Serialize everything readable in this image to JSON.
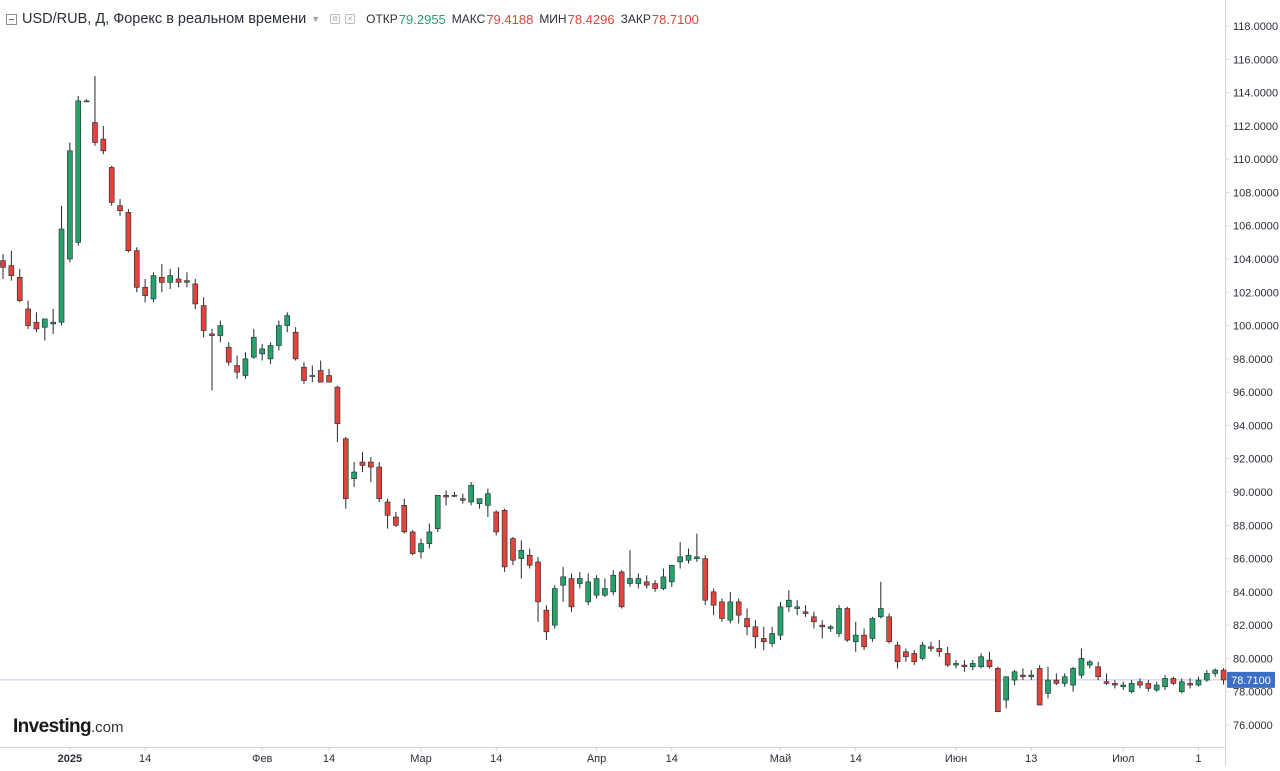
{
  "header": {
    "title": "USD/RUB, Д, Форекс в реальном времени",
    "ohlc": [
      {
        "label": "ОТКР",
        "value": "79.2955"
      },
      {
        "label": "МАКС",
        "value": "79.4188"
      },
      {
        "label": "МИН",
        "value": "78.4296"
      },
      {
        "label": "ЗАКР",
        "value": "78.7100"
      }
    ]
  },
  "logo": {
    "brand": "Investing",
    "suffix": ".com"
  },
  "last_price_label": "78.7100",
  "chart_data": {
    "type": "candlestick",
    "title": "USD/RUB, Д, Форекс в реальном времени",
    "ylim": [
      75,
      119
    ],
    "y_ticks": [
      "76.0000",
      "78.0000",
      "80.0000",
      "82.0000",
      "84.0000",
      "86.0000",
      "88.0000",
      "90.0000",
      "92.0000",
      "94.0000",
      "96.0000",
      "98.0000",
      "100.0000",
      "102.0000",
      "104.0000",
      "106.0000",
      "108.0000",
      "110.0000",
      "112.0000",
      "114.0000",
      "116.0000",
      "118.0000"
    ],
    "x_ticks": [
      {
        "label": "2025",
        "index": 8,
        "bold": true
      },
      {
        "label": "14",
        "index": 17
      },
      {
        "label": "Фев",
        "index": 31
      },
      {
        "label": "14",
        "index": 39
      },
      {
        "label": "Мар",
        "index": 50
      },
      {
        "label": "14",
        "index": 59
      },
      {
        "label": "Апр",
        "index": 71
      },
      {
        "label": "14",
        "index": 80
      },
      {
        "label": "Май",
        "index": 93
      },
      {
        "label": "14",
        "index": 102
      },
      {
        "label": "Июн",
        "index": 114
      },
      {
        "label": "13",
        "index": 123
      },
      {
        "label": "Июл",
        "index": 134
      },
      {
        "label": "1",
        "index": 143
      }
    ],
    "last_price": 78.71,
    "colors": {
      "up": "#26a269",
      "down": "#e0443b",
      "last_price": "#3b6fc4",
      "grid_axis": "#cfd3da"
    },
    "candles": [
      [
        103.9,
        104.3,
        102.8,
        103.5
      ],
      [
        103.6,
        104.5,
        102.7,
        103.0
      ],
      [
        102.9,
        103.4,
        101.4,
        101.5
      ],
      [
        101.0,
        101.5,
        99.8,
        100.0
      ],
      [
        100.2,
        100.8,
        99.6,
        99.8
      ],
      [
        99.9,
        100.4,
        99.1,
        100.4
      ],
      [
        100.1,
        101.0,
        99.5,
        100.2
      ],
      [
        100.2,
        107.2,
        100.0,
        105.8
      ],
      [
        104.0,
        111.0,
        103.8,
        110.5
      ],
      [
        105.0,
        113.8,
        104.8,
        113.5
      ],
      [
        113.5,
        113.6,
        113.5,
        113.5
      ],
      [
        112.2,
        115.0,
        110.8,
        111.0
      ],
      [
        111.2,
        112.0,
        110.3,
        110.5
      ],
      [
        109.5,
        109.6,
        107.2,
        107.4
      ],
      [
        107.2,
        107.6,
        106.6,
        106.9
      ],
      [
        106.8,
        107.0,
        104.4,
        104.5
      ],
      [
        104.5,
        104.7,
        102.0,
        102.3
      ],
      [
        102.3,
        102.8,
        101.4,
        101.8
      ],
      [
        101.6,
        103.2,
        101.4,
        103.0
      ],
      [
        102.9,
        103.7,
        102.0,
        102.6
      ],
      [
        102.6,
        103.4,
        102.2,
        103.0
      ],
      [
        102.8,
        103.5,
        102.3,
        102.6
      ],
      [
        102.7,
        103.2,
        102.3,
        102.6
      ],
      [
        102.5,
        102.8,
        101.0,
        101.3
      ],
      [
        101.2,
        101.7,
        99.3,
        99.7
      ],
      [
        99.5,
        99.8,
        96.1,
        99.4
      ],
      [
        99.4,
        100.3,
        99.0,
        100.0
      ],
      [
        98.7,
        99.0,
        97.6,
        97.8
      ],
      [
        97.6,
        98.2,
        96.8,
        97.2
      ],
      [
        97.0,
        98.4,
        96.8,
        98.0
      ],
      [
        98.1,
        99.8,
        98.0,
        99.3
      ],
      [
        98.3,
        98.9,
        97.9,
        98.6
      ],
      [
        98.0,
        99.0,
        97.7,
        98.8
      ],
      [
        98.8,
        100.3,
        98.5,
        100.0
      ],
      [
        100.0,
        100.8,
        99.6,
        100.6
      ],
      [
        99.6,
        99.9,
        97.9,
        98.0
      ],
      [
        97.5,
        97.8,
        96.5,
        96.7
      ],
      [
        97.0,
        97.6,
        96.6,
        97.0
      ],
      [
        97.3,
        97.9,
        96.7,
        96.6
      ],
      [
        97.0,
        97.4,
        96.7,
        96.6
      ],
      [
        96.3,
        96.4,
        93.0,
        94.1
      ],
      [
        93.2,
        93.3,
        89.0,
        89.6
      ],
      [
        90.8,
        91.8,
        90.3,
        91.2
      ],
      [
        91.8,
        92.4,
        91.2,
        91.6
      ],
      [
        91.8,
        92.1,
        90.6,
        91.5
      ],
      [
        91.5,
        91.8,
        89.4,
        89.6
      ],
      [
        89.4,
        89.6,
        87.8,
        88.6
      ],
      [
        88.5,
        88.8,
        87.9,
        88.0
      ],
      [
        89.2,
        89.6,
        87.5,
        87.6
      ],
      [
        87.6,
        87.7,
        86.2,
        86.3
      ],
      [
        86.4,
        87.2,
        86.0,
        86.9
      ],
      [
        86.9,
        88.1,
        86.6,
        87.6
      ],
      [
        87.8,
        89.8,
        87.6,
        89.8
      ],
      [
        89.8,
        90.1,
        89.2,
        89.7
      ],
      [
        89.8,
        90.0,
        89.7,
        89.8
      ],
      [
        89.6,
        89.9,
        89.3,
        89.5
      ],
      [
        89.4,
        90.6,
        89.2,
        90.4
      ],
      [
        89.3,
        89.6,
        89.0,
        89.6
      ],
      [
        89.2,
        90.2,
        88.5,
        89.9
      ],
      [
        88.8,
        88.9,
        87.4,
        87.6
      ],
      [
        88.9,
        89.0,
        85.2,
        85.5
      ],
      [
        87.2,
        87.3,
        85.6,
        85.9
      ],
      [
        86.0,
        87.1,
        84.8,
        86.5
      ],
      [
        86.2,
        86.6,
        85.4,
        85.6
      ],
      [
        85.8,
        86.1,
        82.2,
        83.4
      ],
      [
        82.9,
        83.2,
        81.1,
        81.6
      ],
      [
        82.0,
        84.4,
        81.8,
        84.2
      ],
      [
        84.4,
        85.5,
        83.4,
        84.9
      ],
      [
        84.8,
        85.1,
        82.8,
        83.1
      ],
      [
        84.5,
        85.2,
        84.2,
        84.8
      ],
      [
        83.4,
        85.1,
        83.2,
        84.6
      ],
      [
        83.8,
        85.0,
        83.6,
        84.8
      ],
      [
        83.8,
        84.8,
        83.7,
        84.2
      ],
      [
        84.0,
        85.3,
        83.8,
        85.0
      ],
      [
        85.2,
        85.3,
        83.0,
        83.1
      ],
      [
        84.5,
        86.5,
        84.3,
        84.8
      ],
      [
        84.5,
        85.1,
        84.2,
        84.8
      ],
      [
        84.6,
        85.0,
        84.2,
        84.4
      ],
      [
        84.5,
        84.7,
        84.0,
        84.2
      ],
      [
        84.2,
        85.4,
        84.1,
        84.9
      ],
      [
        84.6,
        85.6,
        84.3,
        85.6
      ],
      [
        85.8,
        87.0,
        85.4,
        86.1
      ],
      [
        85.9,
        86.6,
        85.7,
        86.2
      ],
      [
        86.0,
        87.5,
        85.8,
        86.1
      ],
      [
        86.0,
        86.2,
        83.2,
        83.5
      ],
      [
        84.0,
        84.2,
        82.6,
        83.2
      ],
      [
        83.4,
        83.6,
        82.2,
        82.4
      ],
      [
        82.3,
        84.0,
        82.1,
        83.4
      ],
      [
        83.4,
        83.6,
        82.1,
        82.6
      ],
      [
        82.4,
        83.0,
        81.4,
        81.9
      ],
      [
        81.9,
        82.3,
        80.6,
        81.3
      ],
      [
        81.2,
        81.9,
        80.5,
        81.0
      ],
      [
        80.9,
        81.9,
        80.7,
        81.5
      ],
      [
        81.4,
        83.4,
        81.1,
        83.1
      ],
      [
        83.1,
        84.1,
        82.8,
        83.5
      ],
      [
        83.0,
        83.5,
        82.6,
        83.1
      ],
      [
        82.8,
        83.2,
        82.5,
        82.7
      ],
      [
        82.5,
        82.8,
        81.8,
        82.2
      ],
      [
        82.0,
        82.3,
        81.2,
        81.9
      ],
      [
        81.8,
        82.0,
        81.6,
        81.9
      ],
      [
        81.5,
        83.2,
        81.3,
        83.0
      ],
      [
        83.0,
        83.1,
        81.0,
        81.1
      ],
      [
        81.0,
        82.2,
        80.4,
        81.4
      ],
      [
        81.4,
        81.8,
        80.5,
        80.7
      ],
      [
        81.2,
        82.5,
        81.0,
        82.4
      ],
      [
        82.5,
        84.6,
        82.4,
        83.0
      ],
      [
        82.5,
        82.7,
        80.9,
        81.0
      ],
      [
        80.8,
        81.0,
        79.4,
        79.8
      ],
      [
        80.4,
        80.6,
        79.8,
        80.1
      ],
      [
        80.3,
        80.5,
        79.6,
        79.8
      ],
      [
        80.0,
        81.0,
        79.9,
        80.8
      ],
      [
        80.7,
        81.0,
        80.4,
        80.6
      ],
      [
        80.6,
        81.1,
        80.1,
        80.4
      ],
      [
        80.3,
        80.7,
        79.5,
        79.6
      ],
      [
        79.6,
        79.9,
        79.4,
        79.7
      ],
      [
        79.6,
        79.9,
        79.2,
        79.5
      ],
      [
        79.5,
        79.9,
        79.3,
        79.7
      ],
      [
        79.5,
        80.3,
        79.4,
        80.1
      ],
      [
        79.9,
        80.4,
        79.4,
        79.5
      ],
      [
        79.4,
        79.5,
        76.8,
        76.8
      ],
      [
        77.5,
        78.8,
        77.0,
        78.9
      ],
      [
        78.7,
        79.3,
        78.4,
        79.2
      ],
      [
        79.0,
        79.4,
        78.7,
        78.9
      ],
      [
        78.9,
        79.3,
        78.7,
        79.0
      ],
      [
        79.4,
        79.6,
        77.2,
        77.2
      ],
      [
        77.9,
        79.5,
        77.6,
        78.7
      ],
      [
        78.7,
        79.1,
        78.4,
        78.5
      ],
      [
        78.5,
        79.1,
        78.3,
        78.9
      ],
      [
        78.4,
        79.5,
        78.0,
        79.4
      ],
      [
        79.0,
        80.6,
        78.8,
        80.0
      ],
      [
        79.6,
        79.9,
        79.4,
        79.8
      ],
      [
        79.5,
        79.8,
        78.7,
        78.9
      ],
      [
        78.6,
        79.1,
        78.4,
        78.5
      ],
      [
        78.5,
        78.7,
        78.2,
        78.4
      ],
      [
        78.3,
        78.6,
        78.1,
        78.4
      ],
      [
        78.0,
        78.7,
        77.9,
        78.5
      ],
      [
        78.6,
        78.8,
        78.2,
        78.4
      ],
      [
        78.5,
        78.7,
        78.0,
        78.2
      ],
      [
        78.1,
        78.6,
        78.0,
        78.4
      ],
      [
        78.3,
        79.0,
        78.1,
        78.8
      ],
      [
        78.8,
        78.9,
        78.4,
        78.5
      ],
      [
        78.0,
        78.8,
        77.9,
        78.6
      ],
      [
        78.5,
        78.8,
        78.2,
        78.4
      ],
      [
        78.4,
        78.9,
        78.3,
        78.7
      ],
      [
        78.7,
        79.3,
        78.6,
        79.1
      ],
      [
        79.1,
        79.4,
        78.9,
        79.3
      ],
      [
        79.3,
        79.42,
        78.43,
        78.71
      ]
    ]
  }
}
